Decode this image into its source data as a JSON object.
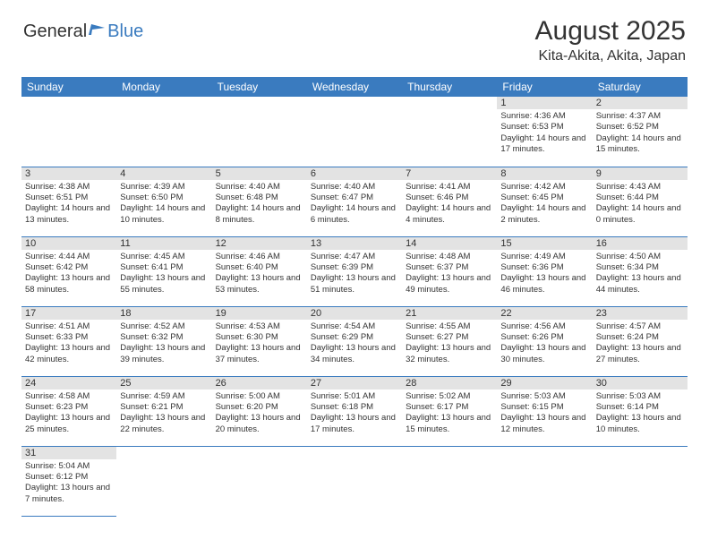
{
  "logo": {
    "text1": "General",
    "text2": "Blue"
  },
  "title": "August 2025",
  "location": "Kita-Akita, Akita, Japan",
  "colors": {
    "header_bg": "#3a7bbf",
    "day_num_bg": "#e3e3e3",
    "border": "#3a7bbf",
    "text": "#333333"
  },
  "weekdays": [
    "Sunday",
    "Monday",
    "Tuesday",
    "Wednesday",
    "Thursday",
    "Friday",
    "Saturday"
  ],
  "weeks": [
    [
      null,
      null,
      null,
      null,
      null,
      {
        "n": "1",
        "sr": "Sunrise: 4:36 AM",
        "ss": "Sunset: 6:53 PM",
        "dl": "Daylight: 14 hours and 17 minutes."
      },
      {
        "n": "2",
        "sr": "Sunrise: 4:37 AM",
        "ss": "Sunset: 6:52 PM",
        "dl": "Daylight: 14 hours and 15 minutes."
      }
    ],
    [
      {
        "n": "3",
        "sr": "Sunrise: 4:38 AM",
        "ss": "Sunset: 6:51 PM",
        "dl": "Daylight: 14 hours and 13 minutes."
      },
      {
        "n": "4",
        "sr": "Sunrise: 4:39 AM",
        "ss": "Sunset: 6:50 PM",
        "dl": "Daylight: 14 hours and 10 minutes."
      },
      {
        "n": "5",
        "sr": "Sunrise: 4:40 AM",
        "ss": "Sunset: 6:48 PM",
        "dl": "Daylight: 14 hours and 8 minutes."
      },
      {
        "n": "6",
        "sr": "Sunrise: 4:40 AM",
        "ss": "Sunset: 6:47 PM",
        "dl": "Daylight: 14 hours and 6 minutes."
      },
      {
        "n": "7",
        "sr": "Sunrise: 4:41 AM",
        "ss": "Sunset: 6:46 PM",
        "dl": "Daylight: 14 hours and 4 minutes."
      },
      {
        "n": "8",
        "sr": "Sunrise: 4:42 AM",
        "ss": "Sunset: 6:45 PM",
        "dl": "Daylight: 14 hours and 2 minutes."
      },
      {
        "n": "9",
        "sr": "Sunrise: 4:43 AM",
        "ss": "Sunset: 6:44 PM",
        "dl": "Daylight: 14 hours and 0 minutes."
      }
    ],
    [
      {
        "n": "10",
        "sr": "Sunrise: 4:44 AM",
        "ss": "Sunset: 6:42 PM",
        "dl": "Daylight: 13 hours and 58 minutes."
      },
      {
        "n": "11",
        "sr": "Sunrise: 4:45 AM",
        "ss": "Sunset: 6:41 PM",
        "dl": "Daylight: 13 hours and 55 minutes."
      },
      {
        "n": "12",
        "sr": "Sunrise: 4:46 AM",
        "ss": "Sunset: 6:40 PM",
        "dl": "Daylight: 13 hours and 53 minutes."
      },
      {
        "n": "13",
        "sr": "Sunrise: 4:47 AM",
        "ss": "Sunset: 6:39 PM",
        "dl": "Daylight: 13 hours and 51 minutes."
      },
      {
        "n": "14",
        "sr": "Sunrise: 4:48 AM",
        "ss": "Sunset: 6:37 PM",
        "dl": "Daylight: 13 hours and 49 minutes."
      },
      {
        "n": "15",
        "sr": "Sunrise: 4:49 AM",
        "ss": "Sunset: 6:36 PM",
        "dl": "Daylight: 13 hours and 46 minutes."
      },
      {
        "n": "16",
        "sr": "Sunrise: 4:50 AM",
        "ss": "Sunset: 6:34 PM",
        "dl": "Daylight: 13 hours and 44 minutes."
      }
    ],
    [
      {
        "n": "17",
        "sr": "Sunrise: 4:51 AM",
        "ss": "Sunset: 6:33 PM",
        "dl": "Daylight: 13 hours and 42 minutes."
      },
      {
        "n": "18",
        "sr": "Sunrise: 4:52 AM",
        "ss": "Sunset: 6:32 PM",
        "dl": "Daylight: 13 hours and 39 minutes."
      },
      {
        "n": "19",
        "sr": "Sunrise: 4:53 AM",
        "ss": "Sunset: 6:30 PM",
        "dl": "Daylight: 13 hours and 37 minutes."
      },
      {
        "n": "20",
        "sr": "Sunrise: 4:54 AM",
        "ss": "Sunset: 6:29 PM",
        "dl": "Daylight: 13 hours and 34 minutes."
      },
      {
        "n": "21",
        "sr": "Sunrise: 4:55 AM",
        "ss": "Sunset: 6:27 PM",
        "dl": "Daylight: 13 hours and 32 minutes."
      },
      {
        "n": "22",
        "sr": "Sunrise: 4:56 AM",
        "ss": "Sunset: 6:26 PM",
        "dl": "Daylight: 13 hours and 30 minutes."
      },
      {
        "n": "23",
        "sr": "Sunrise: 4:57 AM",
        "ss": "Sunset: 6:24 PM",
        "dl": "Daylight: 13 hours and 27 minutes."
      }
    ],
    [
      {
        "n": "24",
        "sr": "Sunrise: 4:58 AM",
        "ss": "Sunset: 6:23 PM",
        "dl": "Daylight: 13 hours and 25 minutes."
      },
      {
        "n": "25",
        "sr": "Sunrise: 4:59 AM",
        "ss": "Sunset: 6:21 PM",
        "dl": "Daylight: 13 hours and 22 minutes."
      },
      {
        "n": "26",
        "sr": "Sunrise: 5:00 AM",
        "ss": "Sunset: 6:20 PM",
        "dl": "Daylight: 13 hours and 20 minutes."
      },
      {
        "n": "27",
        "sr": "Sunrise: 5:01 AM",
        "ss": "Sunset: 6:18 PM",
        "dl": "Daylight: 13 hours and 17 minutes."
      },
      {
        "n": "28",
        "sr": "Sunrise: 5:02 AM",
        "ss": "Sunset: 6:17 PM",
        "dl": "Daylight: 13 hours and 15 minutes."
      },
      {
        "n": "29",
        "sr": "Sunrise: 5:03 AM",
        "ss": "Sunset: 6:15 PM",
        "dl": "Daylight: 13 hours and 12 minutes."
      },
      {
        "n": "30",
        "sr": "Sunrise: 5:03 AM",
        "ss": "Sunset: 6:14 PM",
        "dl": "Daylight: 13 hours and 10 minutes."
      }
    ],
    [
      {
        "n": "31",
        "sr": "Sunrise: 5:04 AM",
        "ss": "Sunset: 6:12 PM",
        "dl": "Daylight: 13 hours and 7 minutes."
      },
      null,
      null,
      null,
      null,
      null,
      null
    ]
  ]
}
